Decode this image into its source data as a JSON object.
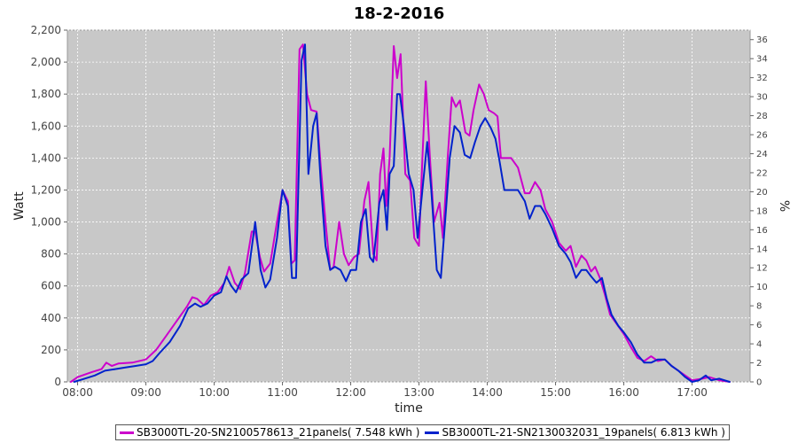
{
  "chart_data": {
    "type": "line",
    "title": "18-2-2016",
    "xlabel": "time",
    "ylabel": "Watt",
    "y2label": "%",
    "ylim": [
      0,
      2200
    ],
    "y2lim": [
      0,
      37
    ],
    "xlim": [
      7.85,
      17.85
    ],
    "x_ticks": [
      "08:00",
      "09:00",
      "10:00",
      "11:00",
      "12:00",
      "13:00",
      "14:00",
      "15:00",
      "16:00",
      "17:00"
    ],
    "y_ticks": [
      "0",
      "200",
      "400",
      "600",
      "800",
      "1,000",
      "1,200",
      "1,400",
      "1,600",
      "1,800",
      "2,000",
      "2,200"
    ],
    "y2_ticks": [
      "0",
      "2",
      "4",
      "6",
      "8",
      "10",
      "12",
      "14",
      "16",
      "18",
      "20",
      "22",
      "24",
      "26",
      "28",
      "30",
      "32",
      "34",
      "36"
    ],
    "grid": true,
    "legend_position": "bottom",
    "series": [
      {
        "name": "SB3000TL-20-SN2100578613_21panels( 7.548 kWh )",
        "color": "#cc00cc",
        "points": [
          [
            7.9,
            0
          ],
          [
            8.0,
            30
          ],
          [
            8.2,
            60
          ],
          [
            8.35,
            80
          ],
          [
            8.42,
            120
          ],
          [
            8.5,
            100
          ],
          [
            8.6,
            115
          ],
          [
            8.8,
            120
          ],
          [
            9.0,
            140
          ],
          [
            9.15,
            200
          ],
          [
            9.3,
            290
          ],
          [
            9.45,
            380
          ],
          [
            9.6,
            470
          ],
          [
            9.68,
            530
          ],
          [
            9.75,
            520
          ],
          [
            9.85,
            480
          ],
          [
            9.95,
            540
          ],
          [
            10.05,
            560
          ],
          [
            10.15,
            620
          ],
          [
            10.22,
            720
          ],
          [
            10.3,
            620
          ],
          [
            10.38,
            580
          ],
          [
            10.45,
            680
          ],
          [
            10.55,
            940
          ],
          [
            10.6,
            940
          ],
          [
            10.67,
            780
          ],
          [
            10.73,
            690
          ],
          [
            10.82,
            740
          ],
          [
            10.92,
            1000
          ],
          [
            11.0,
            1200
          ],
          [
            11.08,
            1130
          ],
          [
            11.13,
            740
          ],
          [
            11.18,
            760
          ],
          [
            11.25,
            2080
          ],
          [
            11.3,
            2110
          ],
          [
            11.36,
            1800
          ],
          [
            11.42,
            1700
          ],
          [
            11.5,
            1690
          ],
          [
            11.56,
            1350
          ],
          [
            11.63,
            1000
          ],
          [
            11.7,
            700
          ],
          [
            11.75,
            720
          ],
          [
            11.83,
            1000
          ],
          [
            11.9,
            800
          ],
          [
            11.97,
            730
          ],
          [
            12.05,
            780
          ],
          [
            12.12,
            800
          ],
          [
            12.2,
            1130
          ],
          [
            12.26,
            1250
          ],
          [
            12.33,
            800
          ],
          [
            12.38,
            760
          ],
          [
            12.43,
            1300
          ],
          [
            12.48,
            1460
          ],
          [
            12.52,
            1100
          ],
          [
            12.57,
            1400
          ],
          [
            12.63,
            2100
          ],
          [
            12.68,
            1900
          ],
          [
            12.73,
            2050
          ],
          [
            12.8,
            1300
          ],
          [
            12.87,
            1260
          ],
          [
            12.93,
            900
          ],
          [
            13.0,
            850
          ],
          [
            13.05,
            1400
          ],
          [
            13.1,
            1880
          ],
          [
            13.16,
            1400
          ],
          [
            13.22,
            1000
          ],
          [
            13.3,
            1120
          ],
          [
            13.35,
            900
          ],
          [
            13.42,
            1400
          ],
          [
            13.48,
            1780
          ],
          [
            13.54,
            1720
          ],
          [
            13.6,
            1760
          ],
          [
            13.68,
            1560
          ],
          [
            13.74,
            1540
          ],
          [
            13.8,
            1700
          ],
          [
            13.88,
            1860
          ],
          [
            13.95,
            1800
          ],
          [
            14.02,
            1700
          ],
          [
            14.1,
            1680
          ],
          [
            14.15,
            1660
          ],
          [
            14.2,
            1400
          ],
          [
            14.35,
            1400
          ],
          [
            14.45,
            1340
          ],
          [
            14.55,
            1180
          ],
          [
            14.62,
            1180
          ],
          [
            14.7,
            1250
          ],
          [
            14.78,
            1200
          ],
          [
            14.85,
            1080
          ],
          [
            14.95,
            1000
          ],
          [
            15.05,
            870
          ],
          [
            15.15,
            820
          ],
          [
            15.22,
            850
          ],
          [
            15.3,
            720
          ],
          [
            15.38,
            790
          ],
          [
            15.45,
            760
          ],
          [
            15.52,
            690
          ],
          [
            15.58,
            720
          ],
          [
            15.65,
            650
          ],
          [
            15.72,
            550
          ],
          [
            15.8,
            420
          ],
          [
            15.9,
            360
          ],
          [
            16.0,
            300
          ],
          [
            16.1,
            220
          ],
          [
            16.2,
            150
          ],
          [
            16.3,
            130
          ],
          [
            16.4,
            160
          ],
          [
            16.5,
            130
          ],
          [
            16.6,
            140
          ],
          [
            16.7,
            100
          ],
          [
            16.8,
            70
          ],
          [
            16.9,
            40
          ],
          [
            17.0,
            10
          ],
          [
            17.15,
            20
          ],
          [
            17.25,
            30
          ],
          [
            17.4,
            10
          ],
          [
            17.55,
            0
          ]
        ]
      },
      {
        "name": "SB3000TL-21-SN2130032031_19panels( 6.813 kWh )",
        "color": "#0022cc",
        "points": [
          [
            7.95,
            0
          ],
          [
            8.1,
            20
          ],
          [
            8.25,
            40
          ],
          [
            8.4,
            70
          ],
          [
            8.55,
            80
          ],
          [
            8.7,
            90
          ],
          [
            8.85,
            100
          ],
          [
            9.0,
            110
          ],
          [
            9.1,
            130
          ],
          [
            9.2,
            180
          ],
          [
            9.35,
            250
          ],
          [
            9.5,
            350
          ],
          [
            9.62,
            460
          ],
          [
            9.72,
            490
          ],
          [
            9.8,
            470
          ],
          [
            9.9,
            490
          ],
          [
            10.0,
            540
          ],
          [
            10.1,
            560
          ],
          [
            10.18,
            660
          ],
          [
            10.25,
            600
          ],
          [
            10.32,
            560
          ],
          [
            10.4,
            640
          ],
          [
            10.5,
            680
          ],
          [
            10.6,
            1000
          ],
          [
            10.68,
            700
          ],
          [
            10.75,
            590
          ],
          [
            10.82,
            640
          ],
          [
            10.92,
            900
          ],
          [
            11.0,
            1200
          ],
          [
            11.08,
            1100
          ],
          [
            11.14,
            650
          ],
          [
            11.2,
            650
          ],
          [
            11.28,
            2010
          ],
          [
            11.33,
            2110
          ],
          [
            11.38,
            1300
          ],
          [
            11.45,
            1600
          ],
          [
            11.5,
            1680
          ],
          [
            11.56,
            1250
          ],
          [
            11.63,
            850
          ],
          [
            11.7,
            700
          ],
          [
            11.77,
            720
          ],
          [
            11.85,
            700
          ],
          [
            11.93,
            630
          ],
          [
            12.0,
            700
          ],
          [
            12.08,
            700
          ],
          [
            12.15,
            1000
          ],
          [
            12.22,
            1080
          ],
          [
            12.28,
            780
          ],
          [
            12.33,
            750
          ],
          [
            12.42,
            1120
          ],
          [
            12.48,
            1200
          ],
          [
            12.53,
            950
          ],
          [
            12.57,
            1300
          ],
          [
            12.63,
            1350
          ],
          [
            12.68,
            1800
          ],
          [
            12.72,
            1800
          ],
          [
            12.78,
            1600
          ],
          [
            12.85,
            1300
          ],
          [
            12.92,
            1200
          ],
          [
            12.98,
            900
          ],
          [
            13.05,
            1200
          ],
          [
            13.12,
            1500
          ],
          [
            13.18,
            1200
          ],
          [
            13.26,
            700
          ],
          [
            13.32,
            650
          ],
          [
            13.4,
            1100
          ],
          [
            13.45,
            1400
          ],
          [
            13.52,
            1600
          ],
          [
            13.6,
            1560
          ],
          [
            13.67,
            1420
          ],
          [
            13.75,
            1400
          ],
          [
            13.82,
            1500
          ],
          [
            13.9,
            1600
          ],
          [
            13.97,
            1650
          ],
          [
            14.05,
            1590
          ],
          [
            14.12,
            1520
          ],
          [
            14.18,
            1380
          ],
          [
            14.25,
            1200
          ],
          [
            14.35,
            1200
          ],
          [
            14.45,
            1200
          ],
          [
            14.55,
            1130
          ],
          [
            14.62,
            1020
          ],
          [
            14.7,
            1100
          ],
          [
            14.78,
            1100
          ],
          [
            14.85,
            1050
          ],
          [
            14.95,
            960
          ],
          [
            15.05,
            850
          ],
          [
            15.15,
            800
          ],
          [
            15.22,
            750
          ],
          [
            15.3,
            650
          ],
          [
            15.38,
            700
          ],
          [
            15.45,
            700
          ],
          [
            15.52,
            660
          ],
          [
            15.6,
            620
          ],
          [
            15.68,
            650
          ],
          [
            15.75,
            520
          ],
          [
            15.82,
            420
          ],
          [
            15.92,
            350
          ],
          [
            16.0,
            310
          ],
          [
            16.1,
            250
          ],
          [
            16.2,
            170
          ],
          [
            16.3,
            120
          ],
          [
            16.4,
            120
          ],
          [
            16.5,
            140
          ],
          [
            16.6,
            140
          ],
          [
            16.7,
            100
          ],
          [
            16.8,
            70
          ],
          [
            16.9,
            30
          ],
          [
            17.0,
            0
          ],
          [
            17.1,
            10
          ],
          [
            17.2,
            40
          ],
          [
            17.28,
            10
          ],
          [
            17.4,
            20
          ],
          [
            17.55,
            0
          ]
        ]
      }
    ]
  }
}
